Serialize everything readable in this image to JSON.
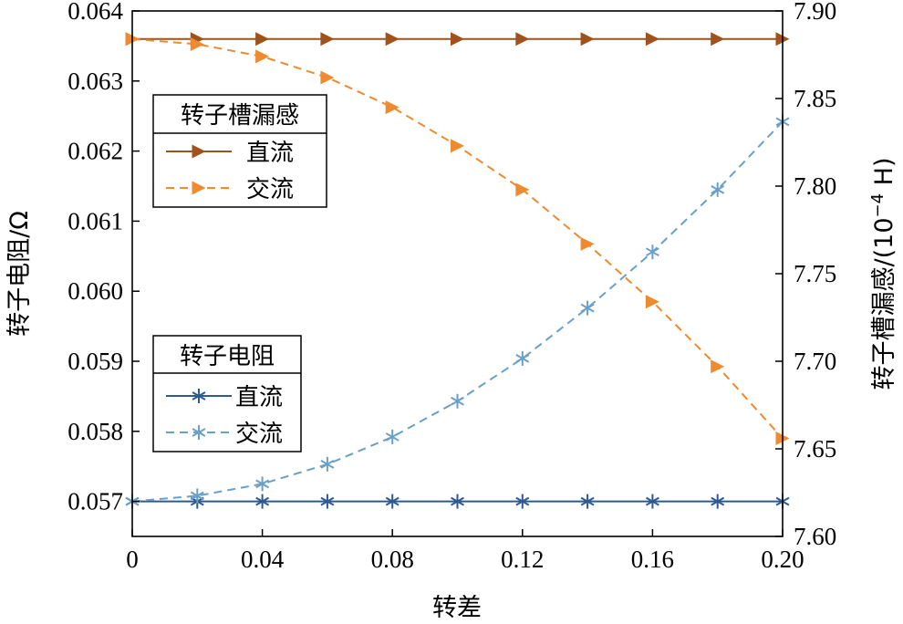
{
  "chart_data": {
    "type": "line",
    "xlabel": "转差",
    "ylabel_left": "转子电阻/Ω",
    "ylabel_right": "转子槽漏感/(10",
    "ylabel_right_exp": "−4",
    "ylabel_right_suffix": " H)",
    "x_ticks": [
      "0",
      "0.04",
      "0.08",
      "0.12",
      "0.16",
      "0.20"
    ],
    "y_left_ticks": [
      "0.057",
      "0.058",
      "0.059",
      "0.060",
      "0.061",
      "0.062",
      "0.063",
      "0.064"
    ],
    "y_right_ticks": [
      "7.60",
      "7.65",
      "7.70",
      "7.75",
      "7.80",
      "7.85",
      "7.90"
    ],
    "xlim": [
      0,
      0.2
    ],
    "ylim_left": [
      0.0565,
      0.064
    ],
    "ylim_right": [
      7.6,
      7.9
    ],
    "grid": false,
    "x": [
      0,
      0.02,
      0.04,
      0.06,
      0.08,
      0.1,
      0.12,
      0.14,
      0.16,
      0.18,
      0.2
    ],
    "series": [
      {
        "group": "转子电阻",
        "name": "直流",
        "axis": "left",
        "style": "solid",
        "marker": "star",
        "color": "#2e5a94",
        "values": [
          0.057,
          0.057,
          0.057,
          0.057,
          0.057,
          0.057,
          0.057,
          0.057,
          0.057,
          0.057,
          0.057
        ]
      },
      {
        "group": "转子电阻",
        "name": "交流",
        "axis": "left",
        "style": "dashed",
        "marker": "star",
        "color": "#6a9fc8",
        "values": [
          0.057,
          0.05708,
          0.05725,
          0.05753,
          0.05792,
          0.05843,
          0.05904,
          0.05976,
          0.06056,
          0.06145,
          0.06242
        ]
      },
      {
        "group": "转子槽漏感",
        "name": "直流",
        "axis": "right",
        "style": "solid",
        "marker": "triangle-right",
        "color": "#a0521c",
        "values": [
          7.884,
          7.884,
          7.884,
          7.884,
          7.884,
          7.884,
          7.884,
          7.884,
          7.884,
          7.884,
          7.884
        ]
      },
      {
        "group": "转子槽漏感",
        "name": "交流",
        "axis": "right",
        "style": "dashed",
        "marker": "triangle-right",
        "color": "#ef8a2e",
        "values": [
          7.884,
          7.881,
          7.874,
          7.862,
          7.845,
          7.823,
          7.798,
          7.767,
          7.734,
          7.697,
          7.656
        ]
      }
    ],
    "legends": [
      {
        "title": "转子槽漏感",
        "placement": "upper-left",
        "entries": [
          "直流",
          "交流"
        ]
      },
      {
        "title": "转子电阻",
        "placement": "lower-left",
        "entries": [
          "直流",
          "交流"
        ]
      }
    ]
  }
}
